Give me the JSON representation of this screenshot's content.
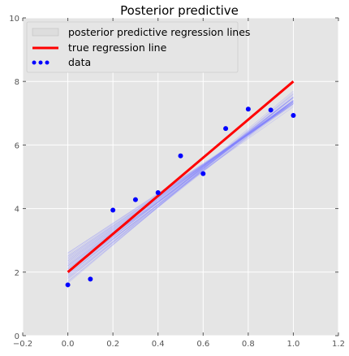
{
  "chart_data": {
    "type": "line",
    "title": "Posterior predictive",
    "xlabel": "",
    "ylabel": "",
    "xlim": [
      -0.2,
      1.2
    ],
    "ylim": [
      0,
      10
    ],
    "x_ticks": [
      -0.2,
      0.0,
      0.2,
      0.4,
      0.6,
      0.8,
      1.0,
      1.2
    ],
    "x_tick_labels": [
      "−0.2",
      "0.0",
      "0.2",
      "0.4",
      "0.6",
      "0.8",
      "1.0",
      "1.2"
    ],
    "y_ticks": [
      0,
      2,
      4,
      6,
      8,
      10
    ],
    "y_tick_labels": [
      "0",
      "2",
      "4",
      "6",
      "8",
      "10"
    ],
    "grid": true,
    "legend_position": "top-left",
    "legend": [
      "posterior predictive regression lines",
      "true regression line",
      "data"
    ],
    "true_line": {
      "x": [
        0.0,
        1.0
      ],
      "y": [
        2.0,
        8.0
      ],
      "color": "#ff0000"
    },
    "posterior_lines": {
      "color": "#8080ff",
      "x_range": [
        0.0,
        1.0
      ],
      "intercepts": [
        1.8,
        2.0,
        2.2,
        2.4,
        2.1,
        1.9,
        2.3,
        2.5,
        2.0,
        1.7,
        2.2,
        2.6,
        1.85,
        2.15,
        2.35,
        1.95,
        2.45,
        2.05,
        1.75,
        2.25,
        2.55,
        1.65,
        2.1,
        2.4,
        2.0,
        1.9,
        2.3,
        2.15,
        2.5,
        1.8,
        2.2,
        1.95,
        2.35,
        2.05,
        1.7,
        2.45,
        2.1,
        1.85,
        2.25,
        2.6
      ],
      "slopes": [
        5.6,
        5.3,
        5.0,
        4.9,
        5.4,
        5.7,
        5.1,
        4.8,
        5.5,
        5.9,
        5.2,
        4.7,
        5.65,
        5.25,
        5.0,
        5.45,
        4.85,
        5.35,
        5.95,
        5.15,
        4.75,
        6.0,
        5.3,
        4.95,
        5.5,
        5.6,
        5.05,
        5.2,
        4.8,
        5.7,
        5.25,
        5.4,
        5.0,
        5.35,
        5.85,
        4.9,
        5.3,
        5.55,
        5.1,
        4.65
      ]
    },
    "data_points": {
      "color": "#0000ff",
      "x": [
        0.0,
        0.1,
        0.2,
        0.3,
        0.4,
        0.5,
        0.6,
        0.7,
        0.8,
        0.9,
        1.0
      ],
      "y": [
        1.6,
        1.78,
        3.95,
        4.28,
        4.5,
        5.66,
        5.1,
        6.52,
        7.13,
        7.1,
        6.93
      ]
    },
    "colors": {
      "plot_background": "#e5e5e5",
      "grid": "#ffffff",
      "true_line": "#ff0000",
      "data": "#0000ff",
      "posterior": "#8080ff"
    }
  }
}
